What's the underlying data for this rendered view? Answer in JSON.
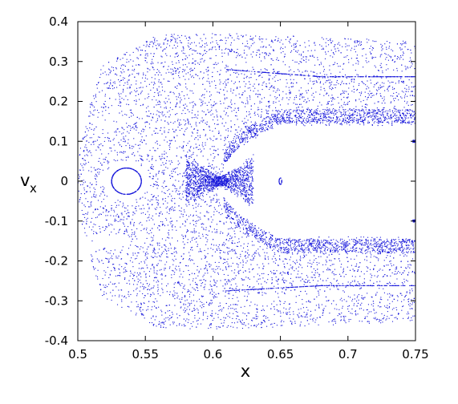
{
  "chart_data": {
    "type": "scatter",
    "xlabel": "x",
    "ylabel_main": "v",
    "ylabel_sub": "x",
    "xlim": [
      0.5,
      0.75
    ],
    "ylim": [
      -0.4,
      0.4
    ],
    "xticks": [
      0.5,
      0.55,
      0.6,
      0.65,
      0.7,
      0.75
    ],
    "xtick_labels": [
      "0.5",
      "0.55",
      "0.6",
      "0.65",
      "0.7",
      "0.75"
    ],
    "yticks": [
      -0.4,
      -0.3,
      -0.2,
      -0.1,
      0,
      0.1,
      0.2,
      0.3,
      0.4
    ],
    "ytick_labels": [
      "-0.4",
      "-0.3",
      "-0.2",
      "-0.1",
      "0",
      "0.1",
      "0.2",
      "0.3",
      "0.4"
    ],
    "grid": false,
    "marker_color": "#1a1adb",
    "series": [
      {
        "description_points": "Poincare section: chaotic sea plus regular islands",
        "chaotic_sea_envelope": {
          "left_x": 0.5,
          "outer_y": 0.37,
          "right_x": 0.75
        },
        "islands": [
          {
            "center": [
              0.536,
              0.0
            ],
            "rx": 0.011,
            "ry": 0.033
          },
          {
            "center": [
              0.65,
              0.0
            ],
            "rx": 0.001,
            "ry": 0.008
          }
        ],
        "separatrix_x_point": [
          0.605,
          0.0
        ],
        "upper_lobe_inner_edge_y": 0.145,
        "lower_lobe_inner_edge_y": -0.145,
        "upper_thin_curve": [
          [
            0.61,
            0.28
          ],
          [
            0.68,
            0.262
          ],
          [
            0.75,
            0.262
          ]
        ],
        "lower_thin_curve": [
          [
            0.61,
            -0.275
          ],
          [
            0.68,
            -0.262
          ],
          [
            0.75,
            -0.262
          ]
        ]
      }
    ]
  }
}
